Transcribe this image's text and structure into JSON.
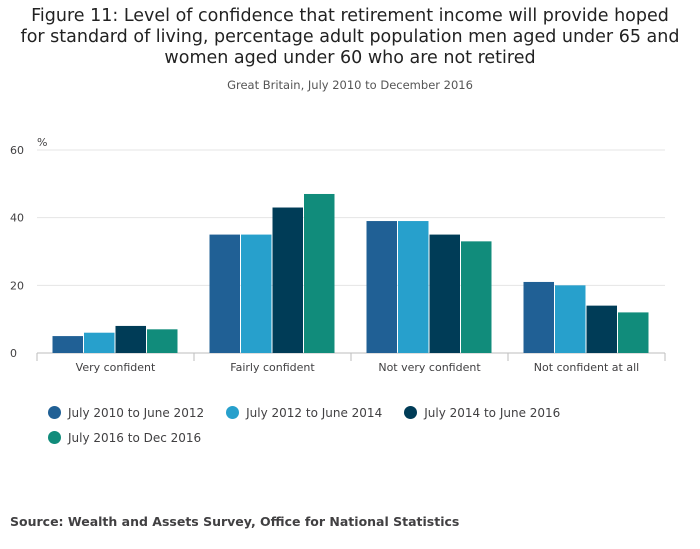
{
  "title_lines": [
    "Figure 11: Level of confidence that retirement income will provide hoped",
    "for standard of living, percentage adult population men aged under 65 and",
    "women aged under 60 who are not retired"
  ],
  "subtitle": "Great Britain, July 2010 to December 2016",
  "source": "Source: Wealth and Assets Survey, Office for National Statistics",
  "chart_data": {
    "type": "bar",
    "title": "Figure 11: Level of confidence that retirement income will provide hoped for standard of living, percentage adult population men aged under 65 and women aged under 60 who are not retired",
    "subtitle": "Great Britain, July 2010 to December 2016",
    "xlabel": "",
    "ylabel": "%",
    "ylim": [
      0,
      60
    ],
    "yticks": [
      0,
      20,
      40,
      60
    ],
    "grid": true,
    "legend_position": "bottom",
    "categories": [
      "Very confident",
      "Fairly confident",
      "Not very confident",
      "Not confident at all"
    ],
    "series": [
      {
        "name": "July 2010 to June 2012",
        "color": "#206095",
        "values": [
          5,
          35,
          39,
          21
        ]
      },
      {
        "name": "July 2012 to June 2014",
        "color": "#27a0cc",
        "values": [
          6,
          35,
          39,
          20
        ]
      },
      {
        "name": "July 2014 to June 2016",
        "color": "#003c57",
        "values": [
          8,
          43,
          35,
          14
        ]
      },
      {
        "name": "July 2016 to Dec 2016",
        "color": "#118c7b",
        "values": [
          7,
          47,
          33,
          12
        ]
      }
    ]
  }
}
